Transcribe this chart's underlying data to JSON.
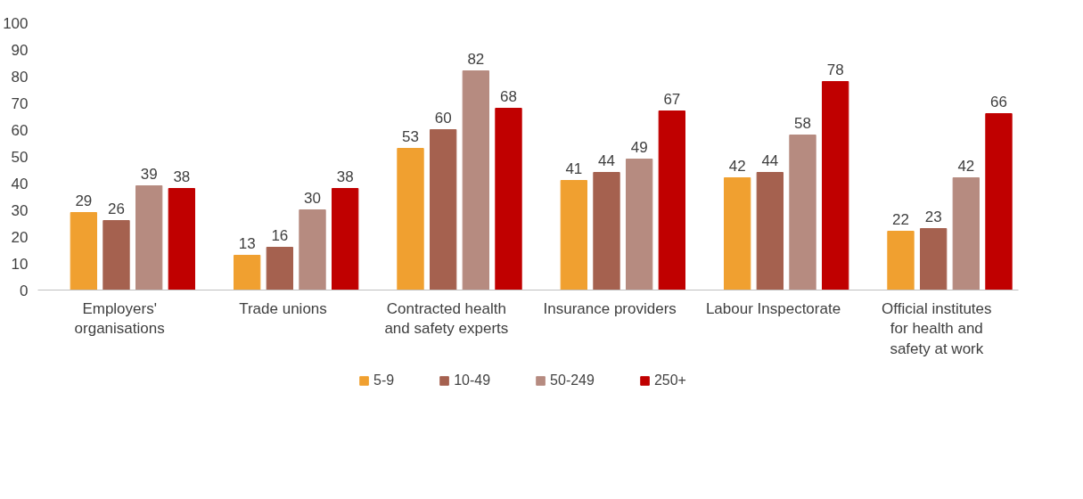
{
  "chart_data": {
    "type": "bar",
    "categories": [
      "Employers' organisations",
      "Trade unions",
      "Contracted health and safety experts",
      "Insurance providers",
      "Labour Inspectorate",
      "Official institutes for health and safety at work"
    ],
    "series": [
      {
        "name": "5-9",
        "color": "#f0a030",
        "values": [
          29,
          13,
          53,
          41,
          42,
          22
        ]
      },
      {
        "name": "10-49",
        "color": "#a5614f",
        "values": [
          26,
          16,
          60,
          44,
          44,
          23
        ]
      },
      {
        "name": "50-249",
        "color": "#b68b80",
        "values": [
          39,
          30,
          82,
          49,
          58,
          42
        ]
      },
      {
        "name": "250+",
        "color": "#c00000",
        "values": [
          38,
          38,
          68,
          67,
          78,
          66
        ]
      }
    ],
    "ylim": [
      0,
      100
    ],
    "yticks": [
      0,
      10,
      20,
      30,
      40,
      50,
      60,
      70,
      80,
      90,
      100
    ],
    "grid": false,
    "legend": "bottom",
    "data_labels": true
  }
}
